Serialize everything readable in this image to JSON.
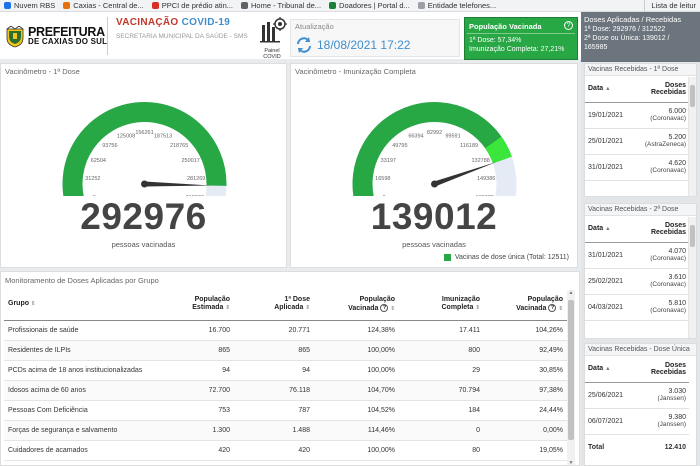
{
  "bookmarks": [
    {
      "label": "Nuvem RBS",
      "color": "#1a73e8"
    },
    {
      "label": "Caxias - Central de...",
      "color": "#e8710a"
    },
    {
      "label": "PPCI de prédio atin...",
      "color": "#d93025"
    },
    {
      "label": "Home - Tribunal de...",
      "color": "#5f6368"
    },
    {
      "label": "Doadores | Portal d...",
      "color": "#188038"
    },
    {
      "label": "Entidade telefones...",
      "color": "#9aa0a6"
    }
  ],
  "bookmarks_right": "Lista de leitur",
  "header": {
    "logo_line1": "PREFEITURA",
    "logo_line2": "DE CAXIAS DO SUL",
    "title_part1": "VACINAÇÃO",
    "title_part2": "COVID-19",
    "subtitle": "SECRETARIA MUNICIPAL DA SAÚDE - SMS",
    "painel_label": "Painel COVID",
    "atualizacao_label": "Atualização",
    "atualizacao_date": "18/08/2021 17:22",
    "pop_vacinada_title": "População Vacinada",
    "pop_vacinada_help": "?",
    "pop_vacinada_line1": "1ª Dose: 57,34%",
    "pop_vacinada_line2": "Imunização Completa: 27,21%"
  },
  "doses_aplicadas": {
    "title": "Doses Aplicadas / Recebidas",
    "line1": "1ª Dose: 292976 / 312522",
    "line2": "2ª Dose ou Única: 139012 /",
    "line3": "165985"
  },
  "gauge1": {
    "title": "Vacinômetro - 1ª Dose",
    "value": 292976,
    "max": 312522,
    "value_display": "292976",
    "caption": "pessoas vacinadas",
    "ticks": [
      "0",
      "31252",
      "62504",
      "93756",
      "125008",
      "156261",
      "187513",
      "218765",
      "250017",
      "281269",
      "312522"
    ]
  },
  "gauge2": {
    "title": "Vacinômetro - Imunização Completa",
    "value": 139012,
    "max": 165985,
    "single_dose": 12511,
    "value_display": "139012",
    "caption": "pessoas vacinadas",
    "legend": "Vacinas de dose única (Total: 12511)",
    "ticks": [
      "0",
      "16598",
      "33197",
      "49795",
      "66394",
      "82992",
      "99591",
      "116189",
      "132788",
      "149386",
      "165985"
    ]
  },
  "colors": {
    "gauge_fill": "#28a745",
    "gauge_single": "#39e639",
    "gauge_track": "#e4ebf5",
    "needle": "#333333"
  },
  "grupos": {
    "title": "Monitoramento de Doses Aplicadas por Grupo",
    "columns": [
      {
        "l1": "Grupo",
        "l2": ""
      },
      {
        "l1": "População",
        "l2": "Estimada"
      },
      {
        "l1": "1ª Dose",
        "l2": "Aplicada"
      },
      {
        "l1": "População",
        "l2": "Vacinada"
      },
      {
        "l1": "Imunização",
        "l2": "Completa"
      },
      {
        "l1": "População",
        "l2": "Vacinada"
      }
    ],
    "rows": [
      [
        "Profissionais de saúde",
        "16.700",
        "20.771",
        "124,38%",
        "17.411",
        "104,26%"
      ],
      [
        "Residentes de ILPIs",
        "865",
        "865",
        "100,00%",
        "800",
        "92,49%"
      ],
      [
        "PCDs acima de 18 anos institucionalizadas",
        "94",
        "94",
        "100,00%",
        "29",
        "30,85%"
      ],
      [
        "Idosos acima de 60 anos",
        "72.700",
        "76.118",
        "104,70%",
        "70.794",
        "97,38%"
      ],
      [
        "Pessoas Com Deficiência",
        "753",
        "787",
        "104,52%",
        "184",
        "24,44%"
      ],
      [
        "Forças de segurança e salvamento",
        "1.300",
        "1.488",
        "114,46%",
        "0",
        "0,00%"
      ],
      [
        "Cuidadores de acamados",
        "420",
        "420",
        "100,00%",
        "80",
        "19,05%"
      ]
    ]
  },
  "vacinas1": {
    "title": "Vacinas Recebidas - 1ª Dose",
    "col_data": "Data",
    "col_doses_l1": "Doses",
    "col_doses_l2": "Recebidas",
    "rows": [
      {
        "data": "19/01/2021",
        "doses": "6.000",
        "vac": "(Coronavac)"
      },
      {
        "data": "25/01/2021",
        "doses": "5.200",
        "vac": "(AstraZeneca)"
      },
      {
        "data": "31/01/2021",
        "doses": "4.620",
        "vac": "(Coronavac)"
      }
    ]
  },
  "vacinas2": {
    "title": "Vacinas Recebidas - 2ª Dose",
    "col_data": "Data",
    "col_doses_l1": "Doses",
    "col_doses_l2": "Recebidas",
    "rows": [
      {
        "data": "31/01/2021",
        "doses": "4.070",
        "vac": "(Coronavac)"
      },
      {
        "data": "25/02/2021",
        "doses": "3.610",
        "vac": "(Coronavac)"
      },
      {
        "data": "04/03/2021",
        "doses": "5.810",
        "vac": "(Coronavac)"
      }
    ]
  },
  "vacinas3": {
    "title": "Vacinas Recebidas - Dose Única",
    "col_data": "Data",
    "col_doses_l1": "Doses",
    "col_doses_l2": "Recebidas",
    "rows": [
      {
        "data": "25/06/2021",
        "doses": "3.030",
        "vac": "(Janssen)"
      },
      {
        "data": "06/07/2021",
        "doses": "9.380",
        "vac": "(Janssen)"
      }
    ],
    "total_label": "Total",
    "total_value": "12.410"
  }
}
